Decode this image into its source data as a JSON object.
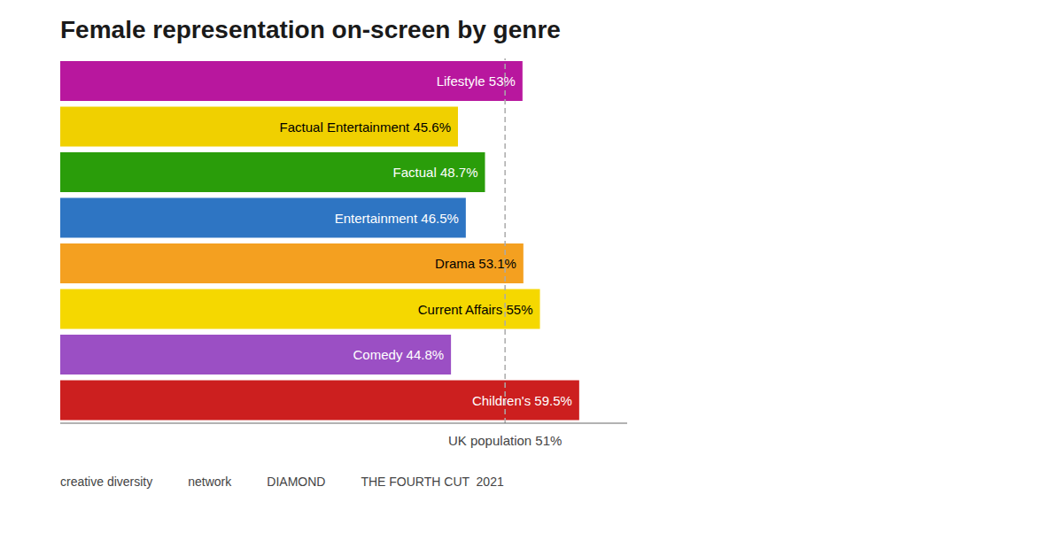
{
  "chart_data": {
    "type": "bar",
    "title": "Female representation on-screen by genre",
    "orientation": "horizontal",
    "categories": [
      "Lifestyle",
      "Factual Entertainment",
      "Factual",
      "Entertainment",
      "Drama",
      "Current Affairs",
      "Comedy",
      "Children's"
    ],
    "values": [
      53.0,
      45.6,
      48.7,
      46.5,
      53.1,
      55.0,
      44.8,
      59.5
    ],
    "value_labels": [
      "Lifestyle 53%",
      "Factual Entertainment  45.6%",
      "Factual  48.7%",
      "Entertainment  46.5%",
      "Drama  53.1%",
      "Current Affairs  55%",
      "Comedy  44.8%",
      "Children's  59.5%"
    ],
    "colors": [
      "#b8179e",
      "#f0d000",
      "#2a9d0a",
      "#2e75c3",
      "#f4a020",
      "#f5d800",
      "#9b4fc4",
      "#cc1f1f"
    ],
    "data_labels": true,
    "xlim": [
      0,
      65
    ],
    "tick_labels": false,
    "grid": false,
    "annotations": [
      {
        "value": 51,
        "label": "UK population 51%"
      },
      "creative diversity",
      "network",
      "DIAMOND",
      "THE FOURTH CUT  2021"
    ]
  }
}
